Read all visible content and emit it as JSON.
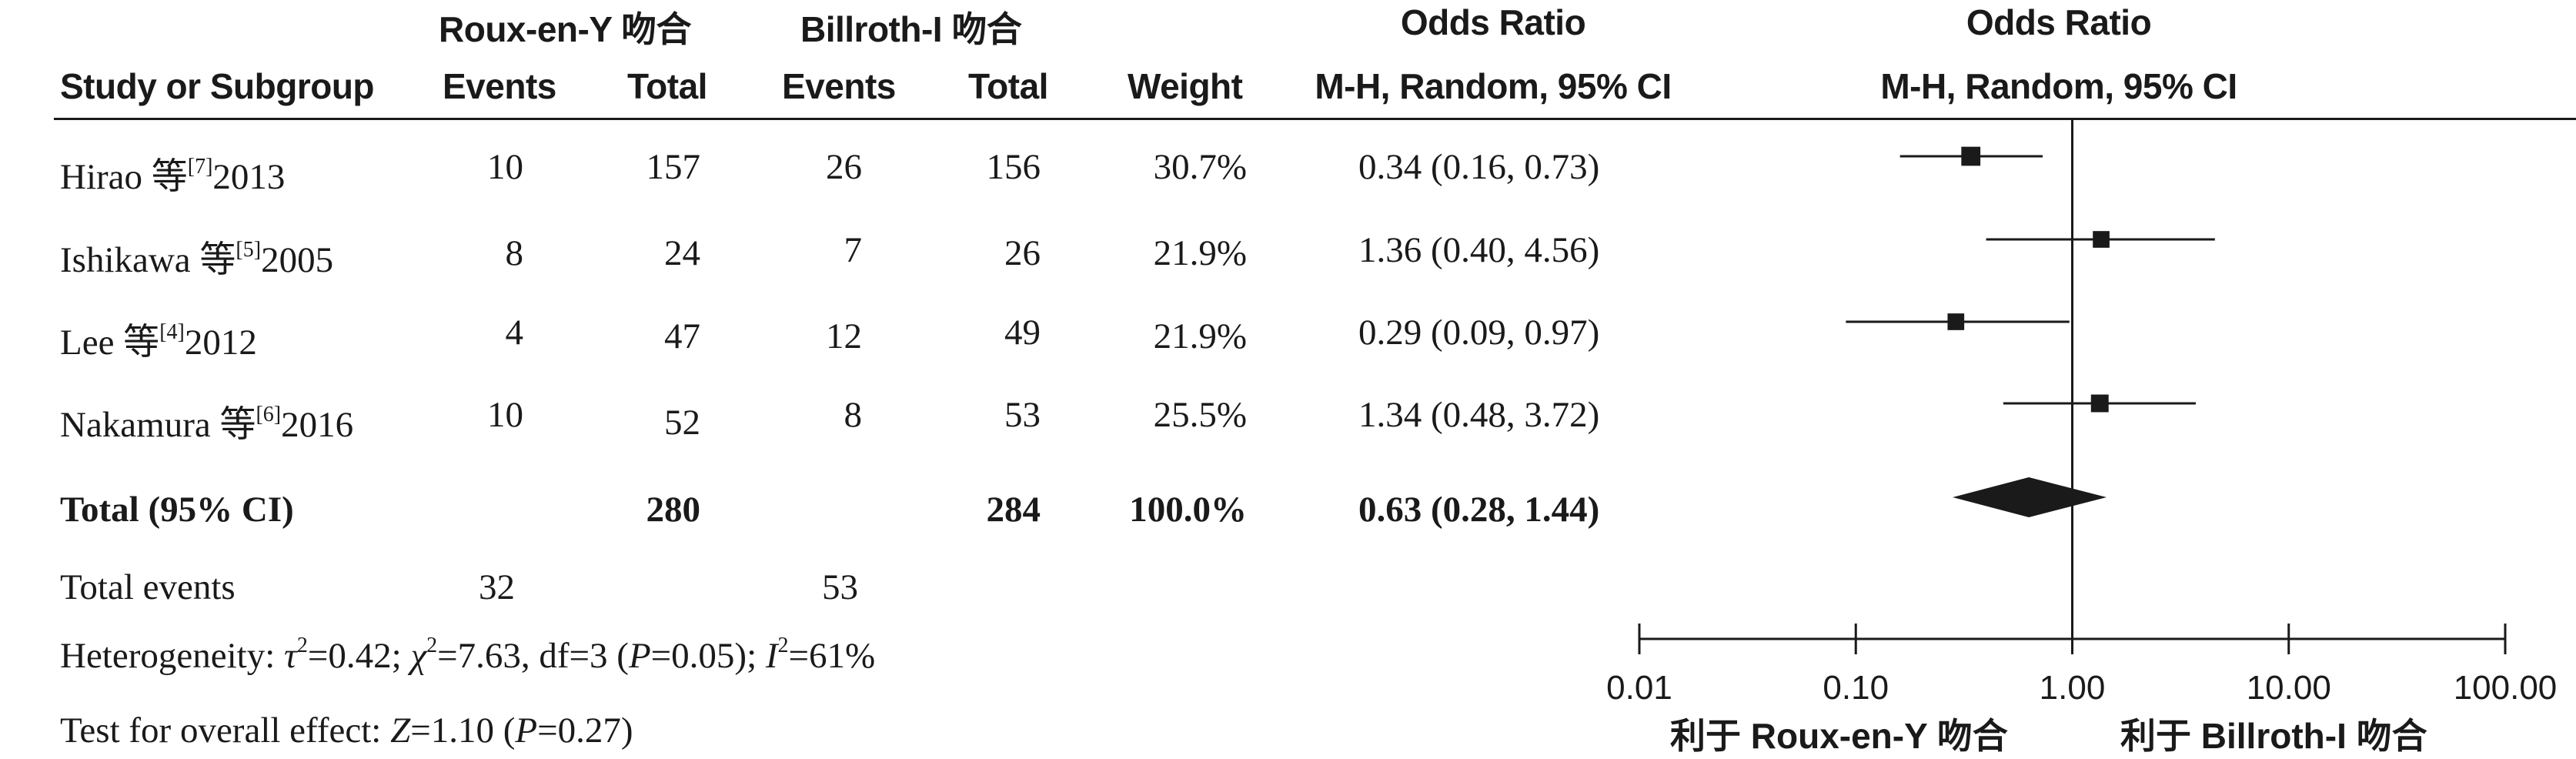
{
  "headers": {
    "group1_title": "Roux-en-Y 吻合",
    "group2_title": "Billroth-I 吻合",
    "or_title_left": "Odds Ratio",
    "or_title_right": "Odds Ratio",
    "study": "Study or Subgroup",
    "events1": "Events",
    "total1": "Total",
    "events2": "Events",
    "total2": "Total",
    "weight": "Weight",
    "method_left": "M-H, Random, 95% CI",
    "method_right": "M-H, Random, 95% CI"
  },
  "studies": [
    {
      "name": "Hirao 等",
      "ref": "[7]",
      "year": "2013",
      "e1": "10",
      "t1": "157",
      "e2": "26",
      "t2": "156",
      "weight": "30.7%",
      "ci_text": "0.34 (0.16, 0.73)"
    },
    {
      "name": "Ishikawa 等",
      "ref": "[5]",
      "year": "2005",
      "e1": "8",
      "t1": "24",
      "e2": "7",
      "t2": "26",
      "weight": "21.9%",
      "ci_text": "1.36 (0.40, 4.56)"
    },
    {
      "name": "Lee 等",
      "ref": "[4]",
      "year": "2012",
      "e1": "4",
      "t1": "47",
      "e2": "12",
      "t2": "49",
      "weight": "21.9%",
      "ci_text": "0.29 (0.09, 0.97)"
    },
    {
      "name": "Nakamura 等",
      "ref": "[6]",
      "year": "2016",
      "e1": "10",
      "t1": "52",
      "e2": "8",
      "t2": "53",
      "weight": "25.5%",
      "ci_text": "1.34 (0.48, 3.72)"
    }
  ],
  "total": {
    "label": "Total (95% CI)",
    "t1": "280",
    "t2": "284",
    "weight": "100.0%",
    "ci_text": "0.63 (0.28, 1.44)"
  },
  "total_events": {
    "label": "Total events",
    "e1": "32",
    "e2": "53"
  },
  "heterogeneity": {
    "prefix": "Heterogeneity: ",
    "tau": "τ",
    "tau_val": "=0.42; ",
    "chi": "χ",
    "chi_val": "=7.63, df=3 (",
    "p": "P",
    "p_val": "=0.05); ",
    "i": "I",
    "i_val": "=61%",
    "sq": "2"
  },
  "overall": {
    "prefix": "Test for overall effect: ",
    "z": "Z",
    "z_val": "=1.10 (",
    "p": "P",
    "p_val": "=0.27)"
  },
  "chart_data": {
    "type": "forest",
    "xscale": "log",
    "xlim": [
      0.01,
      100
    ],
    "ticks": [
      0.01,
      0.1,
      1,
      10,
      100
    ],
    "tick_labels": [
      "0.01",
      "0.10",
      "1.00",
      "10.00",
      "100.00"
    ],
    "reference_line": 1,
    "favours_left": "利于 Roux-en-Y 吻合",
    "favours_right": "利于 Billroth-I 吻合",
    "studies": [
      {
        "or": 0.34,
        "lo": 0.16,
        "hi": 0.73,
        "weight": 30.7
      },
      {
        "or": 1.36,
        "lo": 0.4,
        "hi": 4.56,
        "weight": 21.9
      },
      {
        "or": 0.29,
        "lo": 0.09,
        "hi": 0.97,
        "weight": 21.9
      },
      {
        "or": 1.34,
        "lo": 0.48,
        "hi": 3.72,
        "weight": 25.5
      }
    ],
    "pooled": {
      "or": 0.63,
      "lo": 0.28,
      "hi": 1.44
    },
    "colors": {
      "ink": "#1a1a1a"
    }
  }
}
